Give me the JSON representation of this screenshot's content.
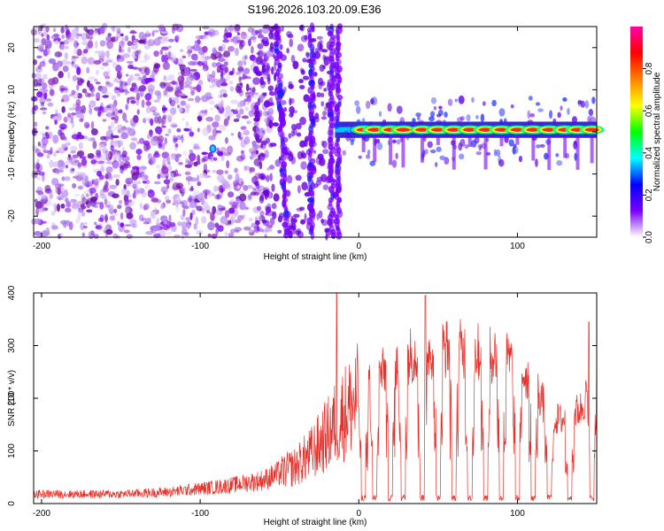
{
  "title": "S196.2026.103.20.09.E36",
  "chart_data": [
    {
      "type": "heatmap",
      "xlabel": "Height of straight line (km)",
      "ylabel": "Frequency (Hz)",
      "xlim": [
        -205,
        150
      ],
      "ylim": [
        -25,
        25
      ],
      "xticks": [
        -200,
        -100,
        0,
        100
      ],
      "yticks": [
        20,
        10,
        0,
        -10,
        -20
      ],
      "colorbar": {
        "label": "Normalized spectral amplitude",
        "range": [
          0,
          1
        ],
        "ticks": [
          "0.0",
          "0.2",
          "0.4",
          "0.6",
          "0.8"
        ],
        "colormap": [
          "#ffffff",
          "#7a00ff",
          "#0000ff",
          "#00ffff",
          "#00ff00",
          "#ffff00",
          "#ff8000",
          "#ff0000",
          "#ff00aa"
        ]
      },
      "features": {
        "noise_region_km": [
          -205,
          -15
        ],
        "streaks_km": [
          -52,
          -30,
          -17,
          -13
        ],
        "carrier_band_hz": [
          -1,
          2
        ],
        "carrier_start_km": -15,
        "strong_pulses_km": [
          3,
          10,
          20,
          28,
          40,
          50,
          60,
          70,
          80,
          90,
          100,
          110,
          120,
          130,
          138,
          147
        ]
      }
    },
    {
      "type": "line",
      "xlabel": "Height of straight line (km)",
      "ylabel": "SNR (10 * v/v)",
      "xlim": [
        -205,
        150
      ],
      "ylim": [
        0,
        400
      ],
      "xticks": [
        -200,
        -100,
        0,
        100
      ],
      "yticks": [
        0,
        100,
        200,
        300,
        400
      ],
      "color": "#e8302a",
      "envelope": {
        "x": [
          -205,
          -150,
          -120,
          -100,
          -80,
          -60,
          -40,
          -30,
          -20,
          -15,
          -10,
          0,
          10,
          20,
          30,
          40,
          50,
          60,
          70,
          80,
          90,
          100,
          110,
          115,
          120,
          130,
          140,
          150
        ],
        "y": [
          18,
          18,
          22,
          28,
          35,
          45,
          70,
          95,
          130,
          150,
          170,
          200,
          235,
          260,
          280,
          290,
          295,
          295,
          290,
          285,
          280,
          260,
          230,
          200,
          160,
          160,
          180,
          250
        ]
      },
      "drops_km": [
        3,
        10,
        20,
        28,
        40,
        50,
        60,
        70,
        80,
        90,
        100,
        110,
        120,
        133,
        147
      ],
      "spikes": [
        {
          "x": -14,
          "y": 400
        },
        {
          "x": 42,
          "y": 395
        },
        {
          "x": 145,
          "y": 345
        }
      ]
    }
  ]
}
